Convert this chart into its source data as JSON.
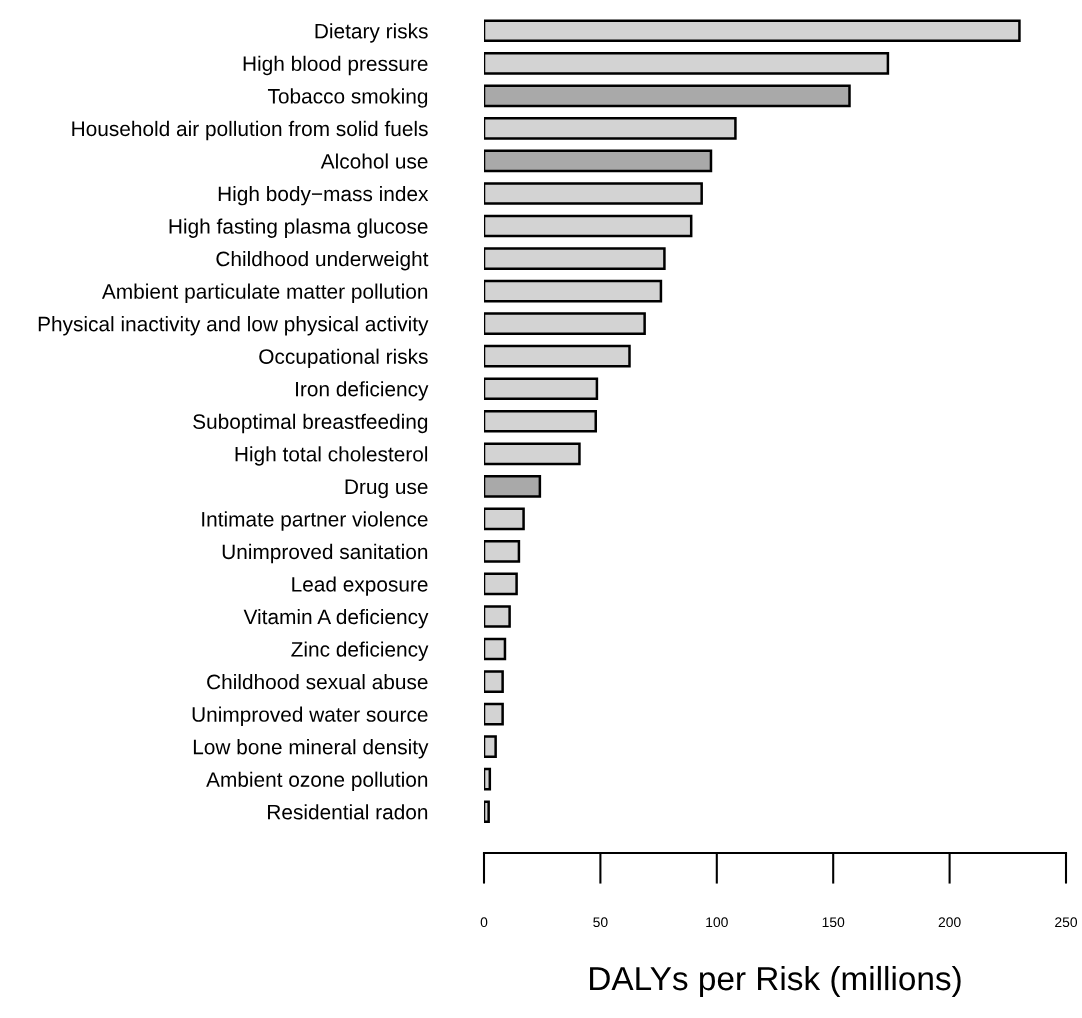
{
  "chart_data": {
    "type": "bar",
    "orientation": "horizontal",
    "xlabel": "DALYs per Risk (millions)",
    "categories": [
      "Dietary risks",
      "High blood pressure",
      "Tobacco smoking",
      "Household air pollution from solid fuels",
      "Alcohol use",
      "High body−mass index",
      "High fasting plasma glucose",
      "Childhood underweight",
      "Ambient particulate matter pollution",
      "Physical inactivity and low physical activity",
      "Occupational risks",
      "Iron deficiency",
      "Suboptimal breastfeeding",
      "High total cholesterol",
      "Drug use",
      "Intimate partner violence",
      "Unimproved sanitation",
      "Lead exposure",
      "Vitamin A deficiency",
      "Zinc deficiency",
      "Childhood sexual abuse",
      "Unimproved water source",
      "Low bone mineral density",
      "Ambient ozone pollution",
      "Residential radon"
    ],
    "values": [
      230,
      173.5,
      157,
      108,
      97.5,
      93.5,
      89,
      77.5,
      76,
      69,
      62.5,
      48.5,
      48,
      41,
      24,
      17,
      15,
      14,
      11,
      9,
      8,
      8,
      5,
      2.5,
      2
    ],
    "colors": [
      "#d3d3d3",
      "#d3d3d3",
      "#a9a9a9",
      "#d3d3d3",
      "#a9a9a9",
      "#d3d3d3",
      "#d3d3d3",
      "#d3d3d3",
      "#d3d3d3",
      "#d3d3d3",
      "#d3d3d3",
      "#d3d3d3",
      "#d3d3d3",
      "#d3d3d3",
      "#a9a9a9",
      "#d3d3d3",
      "#d3d3d3",
      "#d3d3d3",
      "#d3d3d3",
      "#d3d3d3",
      "#d3d3d3",
      "#d3d3d3",
      "#d3d3d3",
      "#d3d3d3",
      "#d3d3d3"
    ],
    "xlim": [
      0,
      250
    ],
    "xticks": [
      0,
      50,
      100,
      150,
      200,
      250
    ],
    "grid": false,
    "legend": false
  }
}
